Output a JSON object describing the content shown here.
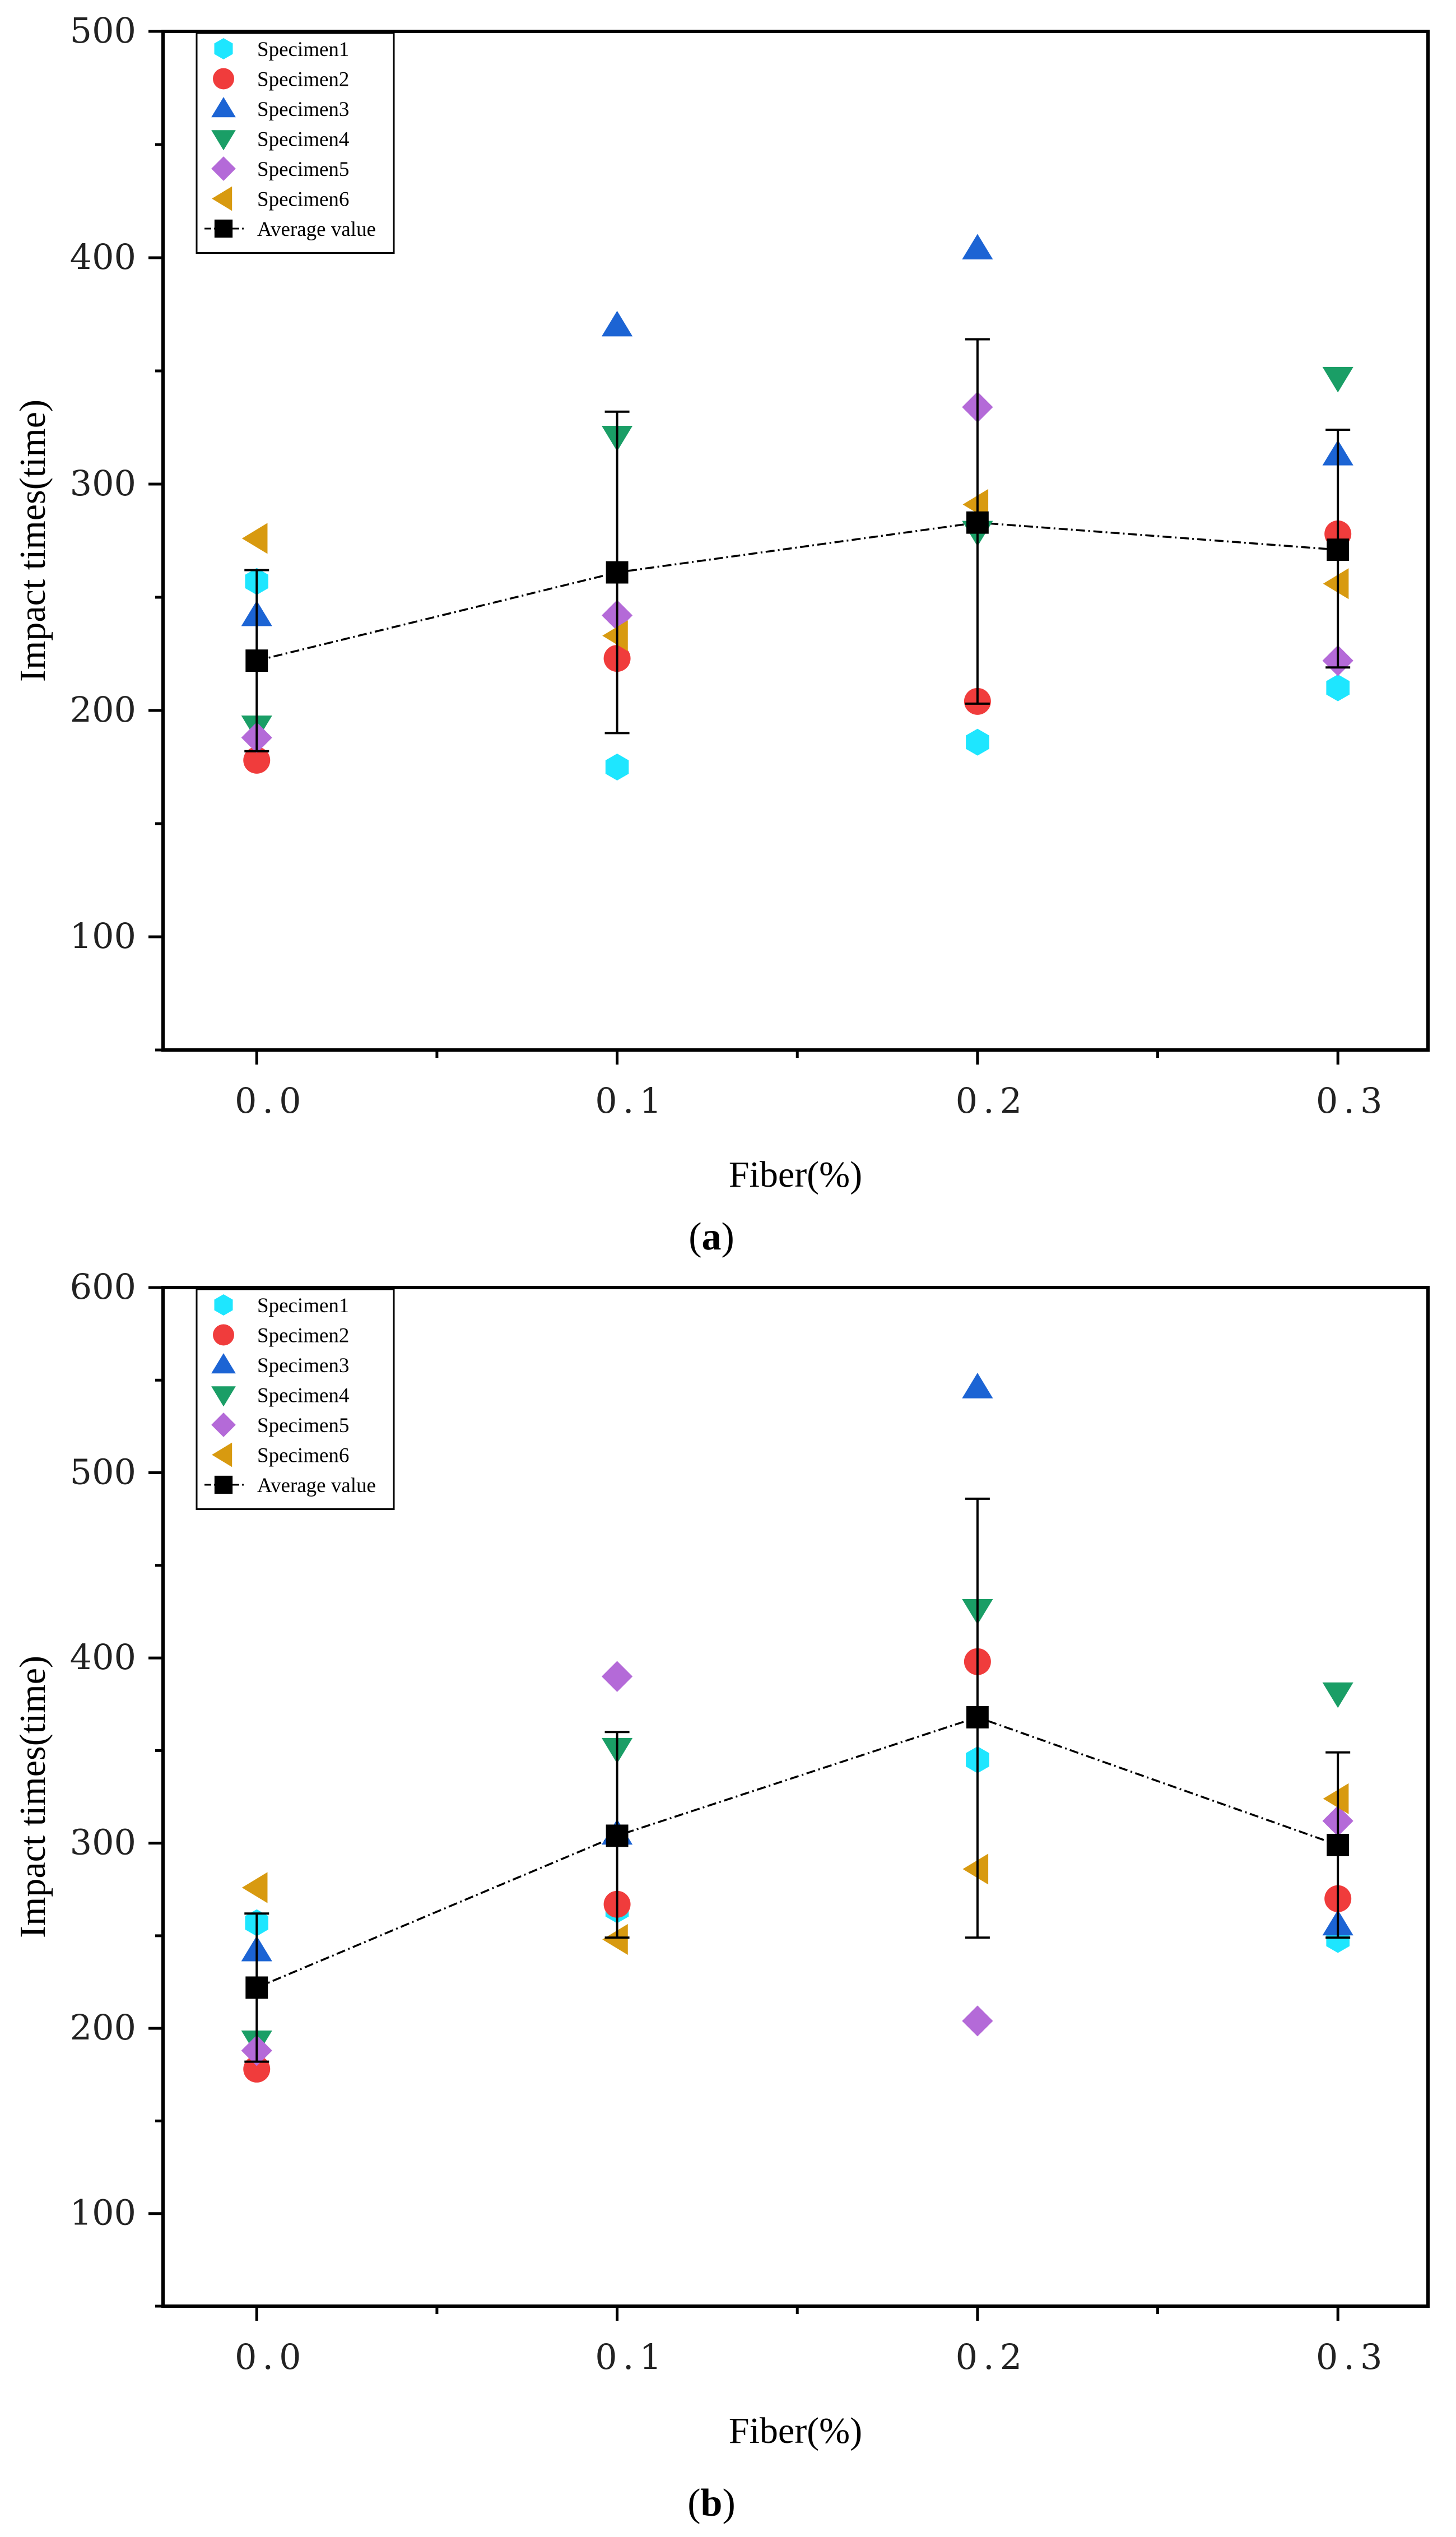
{
  "chart_data": [
    {
      "type": "scatter",
      "panel_label": "a",
      "xlabel": "Fiber(%)",
      "ylabel": "Impact times(time)",
      "x": [
        0.0,
        0.1,
        0.2,
        0.3
      ],
      "x_tick_labels": [
        "0.0",
        "0.1",
        "0.2",
        "0.3"
      ],
      "xlim": [
        -0.026,
        0.325
      ],
      "ylim": [
        50,
        500
      ],
      "y_ticks": [
        100,
        200,
        300,
        400,
        500
      ],
      "legend_position": "top-left",
      "series": [
        {
          "name": "Specimen1",
          "marker": "hexagon",
          "color": "#1ee6ff",
          "values": [
            257,
            175,
            186,
            210
          ]
        },
        {
          "name": "Specimen2",
          "marker": "circle",
          "color": "#f03c3c",
          "values": [
            178,
            223,
            204,
            278
          ]
        },
        {
          "name": "Specimen3",
          "marker": "triangle-up",
          "color": "#1c64d4",
          "values": [
            242,
            370,
            404,
            313
          ]
        },
        {
          "name": "Specimen4",
          "marker": "triangle-down",
          "color": "#1a9e66",
          "values": [
            193,
            321,
            279,
            347
          ]
        },
        {
          "name": "Specimen5",
          "marker": "diamond",
          "color": "#b46ad8",
          "values": [
            188,
            242,
            334,
            222
          ]
        },
        {
          "name": "Specimen6",
          "marker": "triangle-left",
          "color": "#d89a10",
          "values": [
            276,
            233,
            291,
            256
          ]
        },
        {
          "name": "Average value",
          "marker": "square",
          "color": "#000000",
          "line": "dash-dot",
          "values": [
            222,
            261,
            283,
            271
          ],
          "error_low": [
            182,
            190,
            203,
            219
          ],
          "error_high": [
            262,
            332,
            364,
            324
          ]
        }
      ]
    },
    {
      "type": "scatter",
      "panel_label": "b",
      "xlabel": "Fiber(%)",
      "ylabel": "Impact times(time)",
      "x": [
        0.0,
        0.1,
        0.2,
        0.3
      ],
      "x_tick_labels": [
        "0.0",
        "0.1",
        "0.2",
        "0.3"
      ],
      "xlim": [
        -0.026,
        0.325
      ],
      "ylim": [
        50,
        600
      ],
      "y_ticks": [
        100,
        200,
        300,
        400,
        500,
        600
      ],
      "legend_position": "top-left",
      "series": [
        {
          "name": "Specimen1",
          "marker": "hexagon",
          "color": "#1ee6ff",
          "values": [
            257,
            264,
            345,
            248
          ]
        },
        {
          "name": "Specimen2",
          "marker": "circle",
          "color": "#f03c3c",
          "values": [
            178,
            267,
            398,
            270
          ]
        },
        {
          "name": "Specimen3",
          "marker": "triangle-up",
          "color": "#1c64d4",
          "values": [
            242,
            305,
            546,
            256
          ]
        },
        {
          "name": "Specimen4",
          "marker": "triangle-down",
          "color": "#1a9e66",
          "values": [
            193,
            351,
            426,
            381
          ]
        },
        {
          "name": "Specimen5",
          "marker": "diamond",
          "color": "#b46ad8",
          "values": [
            188,
            390,
            204,
            312
          ]
        },
        {
          "name": "Specimen6",
          "marker": "triangle-left",
          "color": "#d89a10",
          "values": [
            276,
            248,
            286,
            324
          ]
        },
        {
          "name": "Average value",
          "marker": "square",
          "color": "#000000",
          "line": "dash-dot",
          "values": [
            222,
            304,
            368,
            299
          ],
          "error_low": [
            182,
            249,
            249,
            249
          ],
          "error_high": [
            262,
            360,
            486,
            349
          ]
        }
      ]
    }
  ]
}
